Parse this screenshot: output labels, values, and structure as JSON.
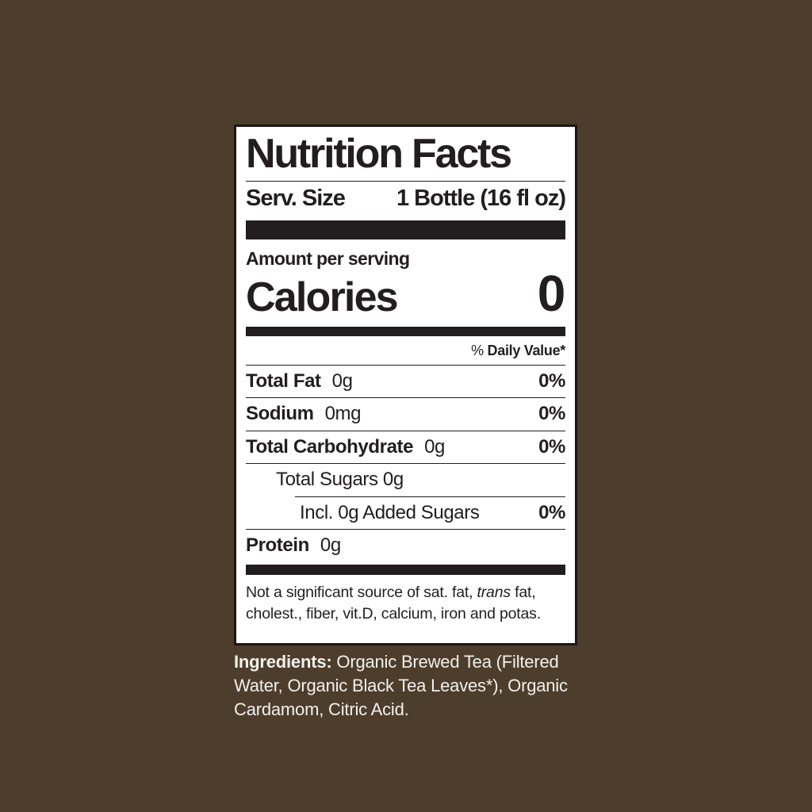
{
  "page": {
    "background_color": "#4d3d2d"
  },
  "label": {
    "title": "Nutrition Facts",
    "serving_size_label": "Serv. Size",
    "serving_size_value": "1 Bottle (16 fl oz)",
    "amount_per_serving": "Amount per serving",
    "calories_label": "Calories",
    "calories_value": "0",
    "daily_value_percent_sign": "%",
    "daily_value_header": "Daily Value*",
    "rows": [
      {
        "name": "Total Fat",
        "amount": "0g",
        "daily_value": "0%"
      },
      {
        "name": "Sodium",
        "amount": "0mg",
        "daily_value": "0%"
      },
      {
        "name": "Total Carbohydrate",
        "amount": "0g",
        "daily_value": "0%"
      },
      {
        "name": "Total Sugars 0g",
        "amount": "",
        "daily_value": ""
      },
      {
        "name": "Incl. 0g Added Sugars",
        "amount": "",
        "daily_value": "0%"
      },
      {
        "name": "Protein",
        "amount": "0g",
        "daily_value": ""
      }
    ],
    "footnote": {
      "line1_before_italic": "Not a significant source of sat. fat, ",
      "line1_italic": "trans",
      "line1_after_italic": " fat,",
      "line2": "cholest., fiber, vit.D, calcium, iron and potas."
    },
    "colors": {
      "panel_background": "#ffffff",
      "panel_border": "#1c1713",
      "text": "#221e1f"
    }
  },
  "ingredients": {
    "heading": "Ingredients:",
    "line1_rest": " Organic Brewed Tea (Filtered",
    "line2": "Water, Organic Black Tea Leaves*), Organic",
    "line3": "Cardamom, Citric Acid.",
    "text_color": "#f3f0ea"
  }
}
